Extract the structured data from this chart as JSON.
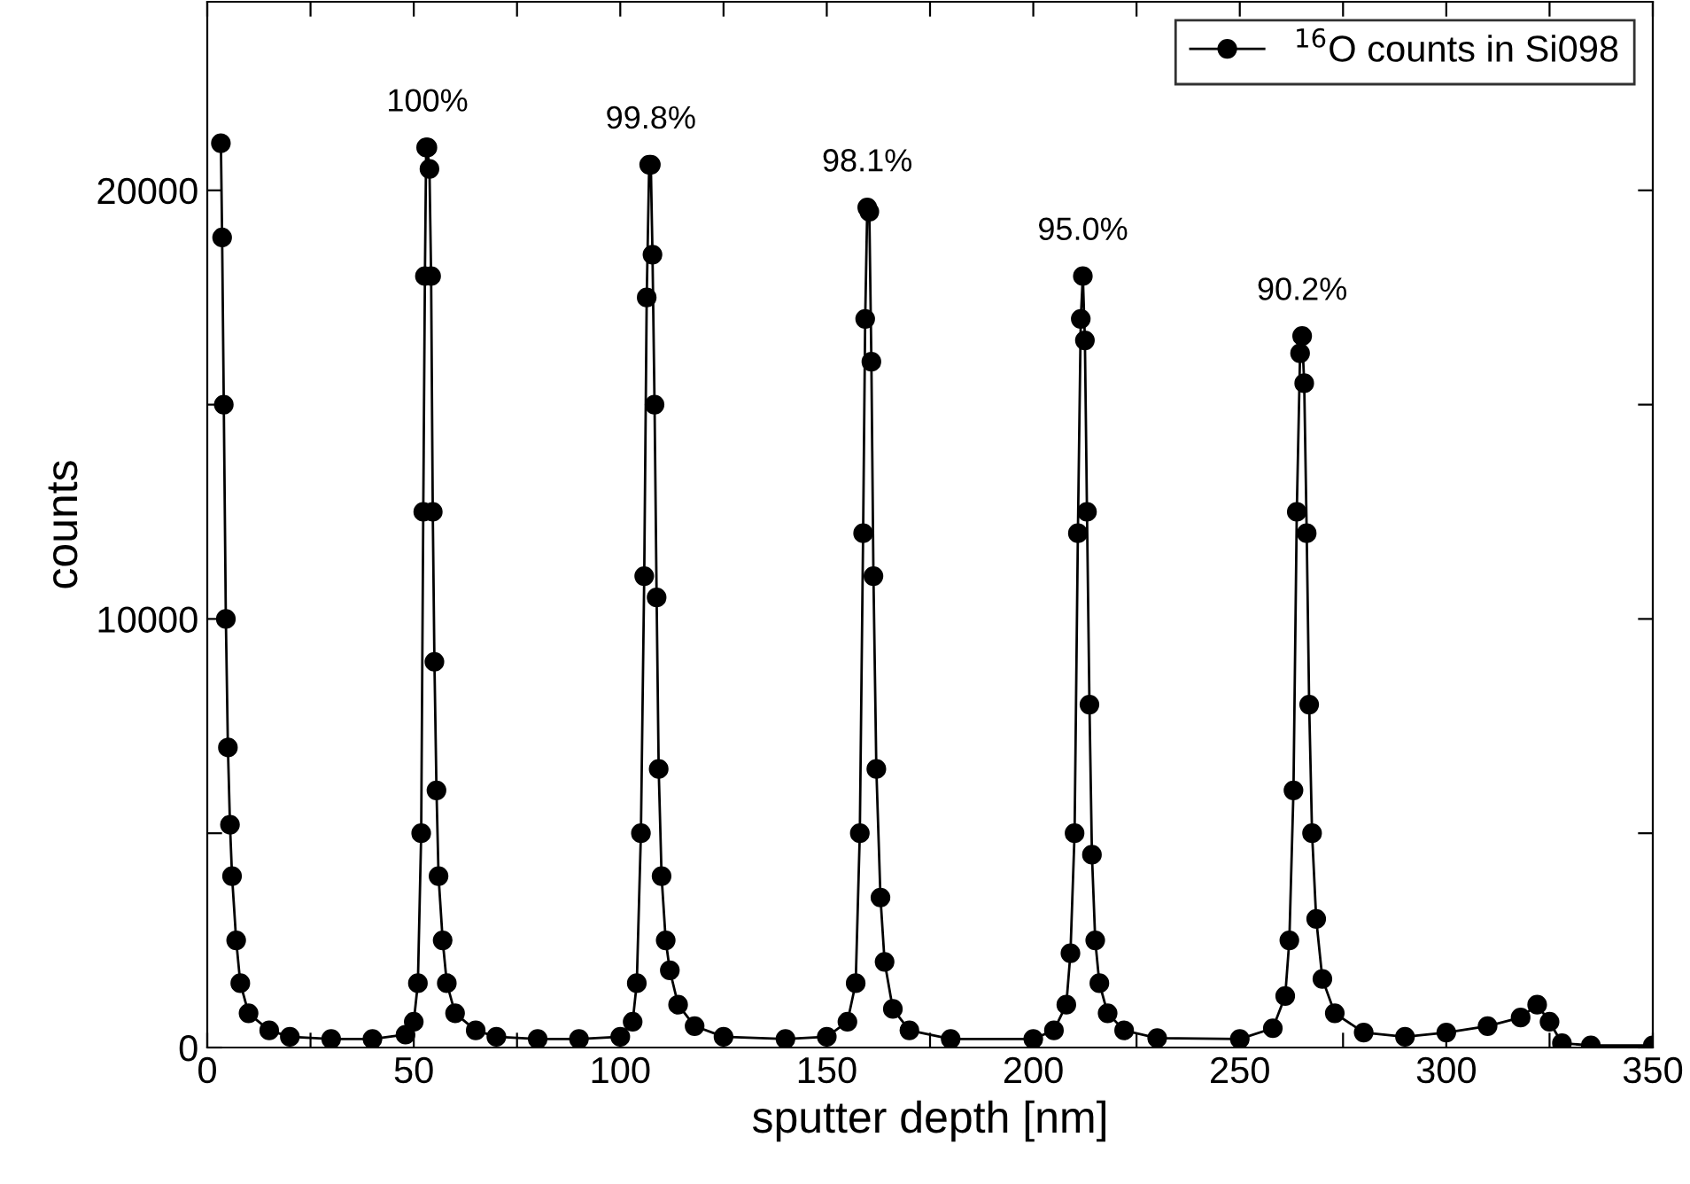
{
  "chart_data": {
    "type": "line",
    "xlabel": "sputter depth [nm]",
    "ylabel": "counts",
    "marker": "circle",
    "line_style": "solid",
    "legend": "top right",
    "grid": false,
    "xlim": [
      0,
      350
    ],
    "ylim": [
      0,
      24400
    ],
    "xticks": [
      0,
      {
        "value": 25,
        "label": null
      },
      50,
      {
        "value": 75,
        "label": null
      },
      100,
      {
        "value": 125,
        "label": null
      },
      150,
      {
        "value": 175,
        "label": null
      },
      200,
      {
        "value": 225,
        "label": null
      },
      250,
      {
        "value": 275,
        "label": null
      },
      300,
      {
        "value": 325,
        "label": null
      },
      350
    ],
    "yticks": [
      0,
      {
        "value": 5000,
        "label": null
      },
      10000,
      {
        "value": 15000,
        "label": null
      },
      20000
    ],
    "series": [
      {
        "name": "$^{16}$O counts in Si098",
        "color": "#000000",
        "x": [
          3.3,
          3.6,
          4,
          4.5,
          5,
          5.5,
          6,
          7,
          8,
          10,
          15,
          20,
          30,
          40,
          48,
          50,
          51,
          51.8,
          52.3,
          52.7,
          53,
          53.3,
          53.8,
          54.2,
          54.6,
          55,
          55.5,
          56,
          57,
          58,
          60,
          65,
          70,
          80,
          90,
          100,
          103,
          104,
          105,
          105.8,
          106.4,
          107,
          107.4,
          107.8,
          108.3,
          108.8,
          109.3,
          110,
          111,
          112,
          114,
          118,
          125,
          140,
          150,
          155,
          157,
          158,
          158.8,
          159.3,
          159.8,
          160.3,
          160.8,
          161.3,
          162,
          163,
          164,
          166,
          170,
          180,
          200,
          205,
          208,
          209,
          210,
          210.8,
          211.5,
          212,
          212.5,
          213,
          213.6,
          214.2,
          215,
          216,
          218,
          222,
          230,
          250,
          258,
          261,
          262,
          263,
          263.8,
          264.6,
          265.1,
          265.6,
          266.2,
          266.8,
          267.5,
          268.5,
          270,
          273,
          280,
          290,
          300,
          310,
          318,
          322,
          325,
          328,
          335,
          350
        ],
        "values": [
          21100,
          18900,
          15000,
          10000,
          7000,
          5200,
          4000,
          2500,
          1500,
          800,
          400,
          250,
          200,
          200,
          300,
          600,
          1500,
          5000,
          12500,
          18000,
          21000,
          21000,
          20500,
          18000,
          12500,
          9000,
          6000,
          4000,
          2500,
          1500,
          800,
          400,
          250,
          200,
          200,
          250,
          600,
          1500,
          5000,
          11000,
          17500,
          20600,
          20600,
          18500,
          15000,
          10500,
          6500,
          4000,
          2500,
          1800,
          1000,
          500,
          250,
          200,
          250,
          600,
          1500,
          5000,
          12000,
          17000,
          19600,
          19500,
          16000,
          11000,
          6500,
          3500,
          2000,
          900,
          400,
          200,
          200,
          400,
          1000,
          2200,
          5000,
          12000,
          17000,
          18000,
          16500,
          12500,
          8000,
          4500,
          2500,
          1500,
          800,
          400,
          220,
          200,
          450,
          1200,
          2500,
          6000,
          12500,
          16200,
          16600,
          15500,
          12000,
          8000,
          5000,
          3000,
          1600,
          800,
          350,
          250,
          350,
          500,
          700,
          1000,
          600,
          100,
          50,
          50
        ]
      }
    ],
    "annotations": [
      {
        "text": "100%",
        "x": 53.3,
        "y": 21000
      },
      {
        "text": "99.8%",
        "x": 107.4,
        "y": 20600
      },
      {
        "text": "98.1%",
        "x": 159.8,
        "y": 19600
      },
      {
        "text": "95.0%",
        "x": 212,
        "y": 18000
      },
      {
        "text": "90.2%",
        "x": 265.1,
        "y": 16600
      }
    ]
  }
}
